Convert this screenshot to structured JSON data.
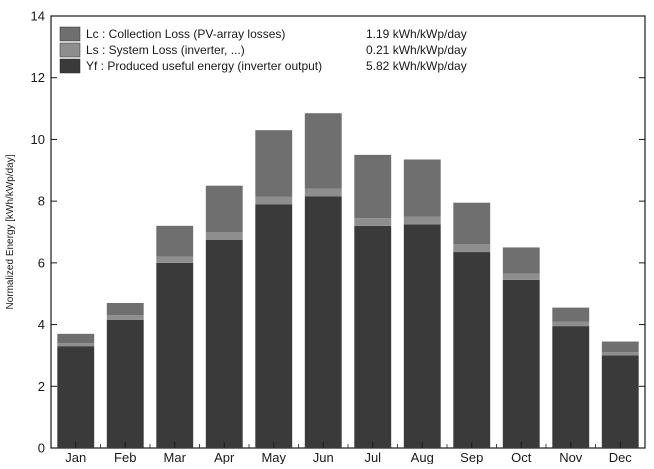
{
  "chart_data": {
    "type": "bar",
    "stacked": true,
    "ylabel": "Normalized Energy [kWh/kWp/day]",
    "ylim": [
      0,
      14
    ],
    "yticks": [
      0,
      2,
      4,
      6,
      8,
      10,
      12,
      14
    ],
    "grid": false,
    "legend_position": "top-left",
    "categories": [
      "Jan",
      "Feb",
      "Mar",
      "Apr",
      "May",
      "Jun",
      "Jul",
      "Aug",
      "Sep",
      "Oct",
      "Nov",
      "Dec"
    ],
    "series": [
      {
        "name": "Yf : Produced useful energy  (inverter output)",
        "annual_value": "5.82 kWh/kWp/day",
        "color": "#3a3a3a",
        "values": [
          3.3,
          4.15,
          6.0,
          6.75,
          7.9,
          8.15,
          7.2,
          7.25,
          6.35,
          5.45,
          3.95,
          3.0
        ]
      },
      {
        "name": "Ls : System Loss  (inverter, ...)",
        "annual_value": "0.21 kWh/kWp/day",
        "color": "#8e8e8e",
        "values": [
          0.1,
          0.15,
          0.2,
          0.25,
          0.25,
          0.25,
          0.25,
          0.25,
          0.25,
          0.2,
          0.15,
          0.1
        ]
      },
      {
        "name": "Lc : Collection Loss (PV-array losses)",
        "annual_value": "1.19 kWh/kWp/day",
        "color": "#6f6f6f",
        "values": [
          0.3,
          0.4,
          1.0,
          1.5,
          2.15,
          2.45,
          2.05,
          1.85,
          1.35,
          0.85,
          0.45,
          0.35
        ]
      }
    ],
    "legend": [
      {
        "label": "Lc : Collection Loss (PV-array losses)",
        "value": "1.19 kWh/kWp/day",
        "color": "#6f6f6f"
      },
      {
        "label": "Ls : System Loss  (inverter, ...)",
        "value": "0.21 kWh/kWp/day",
        "color": "#8e8e8e"
      },
      {
        "label": "Yf : Produced useful energy  (inverter output)",
        "value": "5.82 kWh/kWp/day",
        "color": "#3a3a3a"
      }
    ]
  }
}
